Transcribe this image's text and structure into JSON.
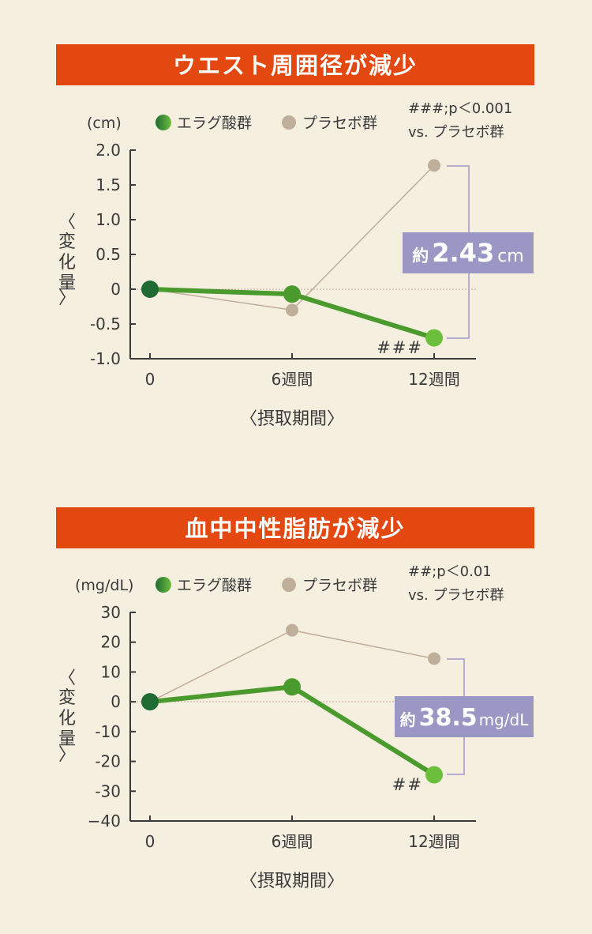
{
  "colors": {
    "background": "#f5efe0",
    "banner": "#e2480f",
    "ellagic": "#4a9a2e",
    "ellagic_dark": "#1f6b34",
    "ellagic_light": "#6cbf3c",
    "placebo": "#bfae9a",
    "callout": "#9b97c5",
    "axis": "#3a3a3a",
    "bracket": "#b5add0"
  },
  "chart_data": [
    {
      "type": "line",
      "title": "ウエスト周囲径が減少",
      "unit": "(cm)",
      "ylabel": "〈変化量〉",
      "xlabel": "〈摂取期間〉",
      "categories": [
        "0",
        "6週間",
        "12週間"
      ],
      "y_ticks": [
        "2.0",
        "1.5",
        "1.0",
        "0.5",
        "0",
        "-0.5",
        "-1.0"
      ],
      "ylim": [
        -1.0,
        2.0
      ],
      "series": [
        {
          "name": "エラグ酸群",
          "values": [
            0,
            -0.07,
            -0.7
          ]
        },
        {
          "name": "プラセボ群",
          "values": [
            0,
            -0.3,
            1.78
          ]
        }
      ],
      "significance": {
        "line1": "###;p＜0.001",
        "line2": "vs. プラセボ群",
        "marker": "###"
      },
      "callout": {
        "prefix": "約",
        "value": "2.43",
        "unit": "cm"
      }
    },
    {
      "type": "line",
      "title": "血中中性脂肪が減少",
      "unit": "(mg/dL)",
      "ylabel": "〈変化量〉",
      "xlabel": "〈摂取期間〉",
      "categories": [
        "0",
        "6週間",
        "12週間"
      ],
      "y_ticks": [
        "30",
        "20",
        "10",
        "0",
        "-10",
        "-20",
        "-30",
        "−40"
      ],
      "ylim": [
        -40,
        30
      ],
      "series": [
        {
          "name": "エラグ酸群",
          "values": [
            0,
            5,
            -24.5
          ]
        },
        {
          "name": "プラセボ群",
          "values": [
            0,
            24,
            14.5
          ]
        }
      ],
      "significance": {
        "line1": "##;p＜0.01",
        "line2": "vs. プラセボ群",
        "marker": "##"
      },
      "callout": {
        "prefix": "約",
        "value": "38.5",
        "unit": "mg/dL"
      }
    }
  ]
}
